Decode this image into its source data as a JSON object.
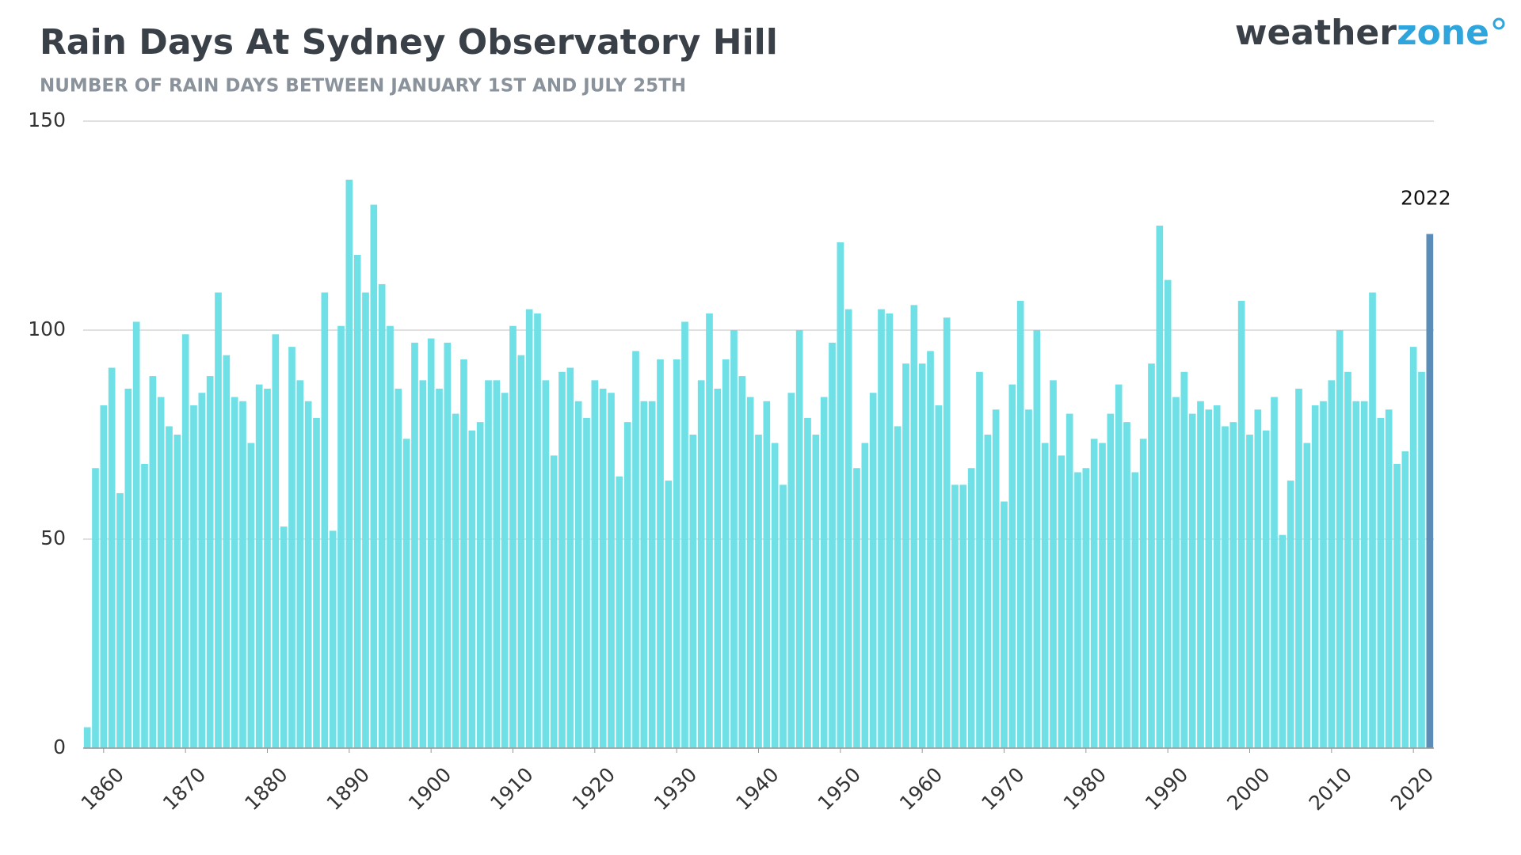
{
  "chart_data": {
    "type": "bar",
    "title": "Rain Days At Sydney Observatory Hill",
    "subtitle": "NUMBER OF RAIN DAYS BETWEEN JANUARY 1ST AND JULY 25TH",
    "logo": [
      "weather",
      "zone"
    ],
    "x": [
      1858,
      1859,
      1860,
      1861,
      1862,
      1863,
      1864,
      1865,
      1866,
      1867,
      1868,
      1869,
      1870,
      1871,
      1872,
      1873,
      1874,
      1875,
      1876,
      1877,
      1878,
      1879,
      1880,
      1881,
      1882,
      1883,
      1884,
      1885,
      1886,
      1887,
      1888,
      1889,
      1890,
      1891,
      1892,
      1893,
      1894,
      1895,
      1896,
      1897,
      1898,
      1899,
      1900,
      1901,
      1902,
      1903,
      1904,
      1905,
      1906,
      1907,
      1908,
      1909,
      1910,
      1911,
      1912,
      1913,
      1914,
      1915,
      1916,
      1917,
      1918,
      1919,
      1920,
      1921,
      1922,
      1923,
      1924,
      1925,
      1926,
      1927,
      1928,
      1929,
      1930,
      1931,
      1932,
      1933,
      1934,
      1935,
      1936,
      1937,
      1938,
      1939,
      1940,
      1941,
      1942,
      1943,
      1944,
      1945,
      1946,
      1947,
      1948,
      1949,
      1950,
      1951,
      1952,
      1953,
      1954,
      1955,
      1956,
      1957,
      1958,
      1959,
      1960,
      1961,
      1962,
      1963,
      1964,
      1965,
      1966,
      1967,
      1968,
      1969,
      1970,
      1971,
      1972,
      1973,
      1974,
      1975,
      1976,
      1977,
      1978,
      1979,
      1980,
      1981,
      1982,
      1983,
      1984,
      1985,
      1986,
      1987,
      1988,
      1989,
      1990,
      1991,
      1992,
      1993,
      1994,
      1995,
      1996,
      1997,
      1998,
      1999,
      2000,
      2001,
      2002,
      2003,
      2004,
      2005,
      2006,
      2007,
      2008,
      2009,
      2010,
      2011,
      2012,
      2013,
      2014,
      2015,
      2016,
      2017,
      2018,
      2019,
      2020,
      2021,
      2022
    ],
    "values": [
      5,
      67,
      82,
      91,
      61,
      86,
      102,
      68,
      89,
      84,
      77,
      75,
      99,
      82,
      85,
      89,
      109,
      94,
      84,
      83,
      73,
      87,
      86,
      99,
      53,
      96,
      88,
      83,
      79,
      109,
      52,
      101,
      136,
      118,
      109,
      130,
      111,
      101,
      86,
      74,
      97,
      88,
      98,
      86,
      97,
      80,
      93,
      76,
      78,
      88,
      88,
      85,
      101,
      94,
      105,
      104,
      88,
      70,
      90,
      91,
      83,
      79,
      88,
      86,
      85,
      65,
      78,
      95,
      83,
      83,
      93,
      64,
      93,
      102,
      75,
      88,
      104,
      86,
      93,
      100,
      89,
      84,
      75,
      83,
      73,
      63,
      85,
      100,
      79,
      75,
      84,
      97,
      121,
      105,
      67,
      73,
      85,
      105,
      104,
      77,
      92,
      106,
      92,
      95,
      82,
      103,
      63,
      63,
      67,
      90,
      75,
      81,
      59,
      87,
      107,
      81,
      100,
      73,
      88,
      70,
      80,
      66,
      67,
      74,
      73,
      80,
      87,
      78,
      66,
      74,
      92,
      125,
      112,
      84,
      90,
      80,
      83,
      81,
      82,
      77,
      78,
      107,
      75,
      81,
      76,
      84,
      51,
      64,
      86,
      73,
      82,
      83,
      88,
      100,
      90,
      83,
      83,
      109,
      79,
      81,
      68,
      71,
      96,
      90,
      123
    ],
    "color": "#6fe0e6",
    "highlight_color": "#5b8db8",
    "annotation": {
      "text": "2022",
      "x": 2022
    },
    "xlim": [
      1857.5,
      2022.5
    ],
    "xticks": [
      1860,
      1870,
      1880,
      1890,
      1900,
      1910,
      1920,
      1930,
      1940,
      1950,
      1960,
      1970,
      1980,
      1990,
      2000,
      2010,
      2020
    ],
    "ylim": [
      0,
      150
    ],
    "yticks": [
      0,
      50,
      100,
      150
    ],
    "grid": true
  }
}
